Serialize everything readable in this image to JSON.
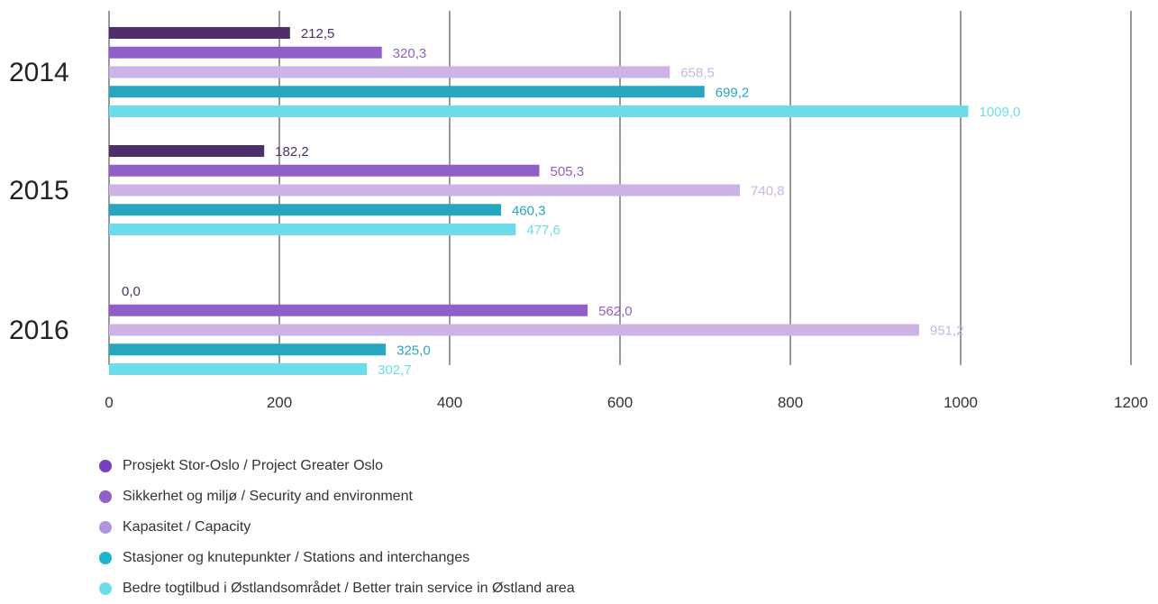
{
  "chart_data": {
    "type": "bar",
    "orientation": "horizontal",
    "categories": [
      "2014",
      "2015",
      "2016"
    ],
    "xlim": [
      0,
      1200
    ],
    "xticks": [
      "0",
      "200",
      "400",
      "600",
      "800",
      "1000",
      "1200"
    ],
    "grid": "vertical",
    "legend_position": "bottom",
    "series": [
      {
        "name": "Prosjekt Stor-Oslo / Project Greater Oslo",
        "color": "#4e2f6b",
        "dot_color": "#7a3fbf",
        "values": [
          212.5,
          182.2,
          0.0
        ],
        "labels": [
          "212,5",
          "182,2",
          "0,0"
        ]
      },
      {
        "name": "Sikkerhet og miljø / Security and environment",
        "color": "#9060c8",
        "dot_color": "#9060c8",
        "values": [
          320.3,
          505.3,
          562.0
        ],
        "labels": [
          "320,3",
          "505,3",
          "562,0"
        ]
      },
      {
        "name": "Kapasitet / Capacity",
        "color": "#cbb3e6",
        "dot_color": "#b296dc",
        "values": [
          658.5,
          740.8,
          951.2
        ],
        "labels": [
          "658,5",
          "740,8",
          "951,2"
        ]
      },
      {
        "name": "Stasjoner og knutepunkter / Stations and interchanges",
        "color": "#28a6bf",
        "dot_color": "#1eb4d0",
        "values": [
          699.2,
          460.3,
          325.0
        ],
        "labels": [
          "699,2",
          "460,3",
          "325,0"
        ]
      },
      {
        "name": "Bedre togtilbud i Østlandsområdet / Better train service in Østland area",
        "color": "#6ddcea",
        "dot_color": "#6ddcea",
        "values": [
          1009.0,
          477.6,
          302.7
        ],
        "labels": [
          "1009,0",
          "477,6",
          "302,7"
        ]
      }
    ]
  }
}
